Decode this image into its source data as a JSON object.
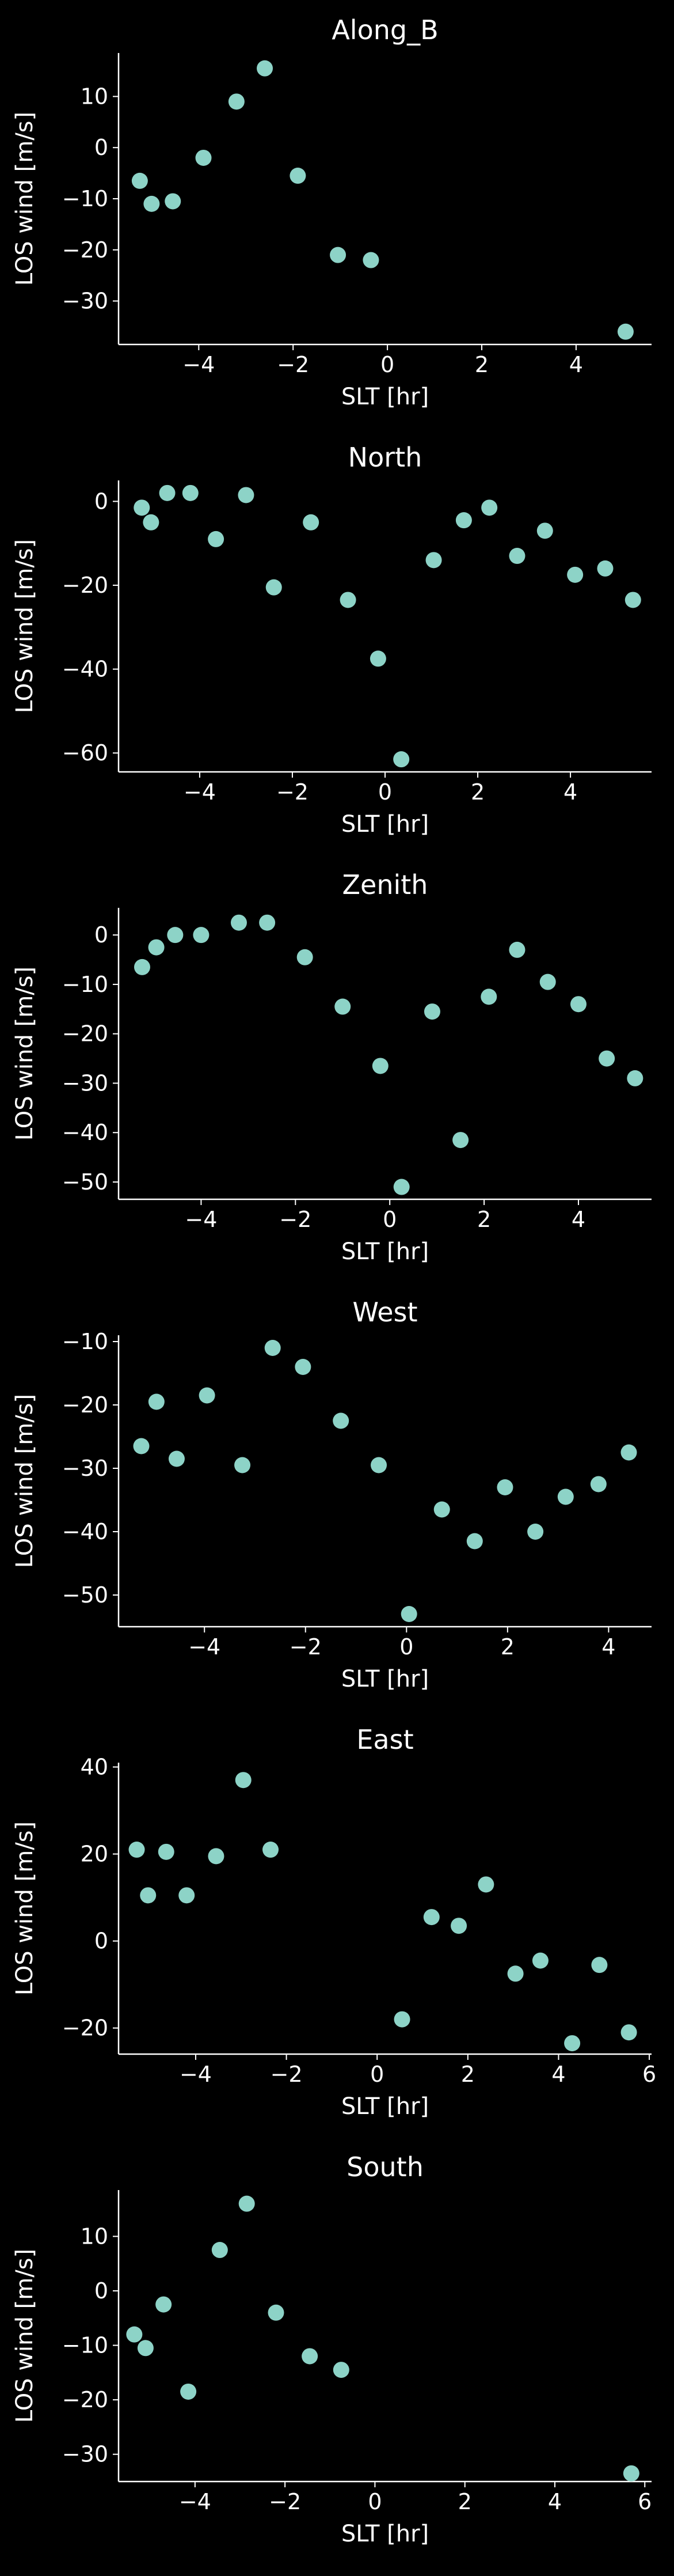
{
  "colors": {
    "background": "#000000",
    "axis": "#ffffff",
    "marker": "#8dd3c7"
  },
  "chart_data": [
    {
      "type": "scatter",
      "title": "Along_B",
      "xlabel": "SLT [hr]",
      "ylabel": "LOS wind [m/s]",
      "xlim": [
        -5.7,
        5.6
      ],
      "ylim": [
        -38.5,
        18.5
      ],
      "xticks": [
        -4,
        -2,
        0,
        2,
        4
      ],
      "yticks": [
        -30,
        -20,
        -10,
        0,
        10
      ],
      "x": [
        -5.25,
        -5.0,
        -4.55,
        -3.9,
        -3.2,
        -2.6,
        -1.9,
        -1.05,
        -0.35,
        5.05
      ],
      "y": [
        -6.5,
        -11,
        -10.5,
        -2,
        9,
        15.5,
        -5.5,
        -21,
        -22,
        -36
      ]
    },
    {
      "type": "scatter",
      "title": "North",
      "xlabel": "SLT [hr]",
      "ylabel": "LOS wind [m/s]",
      "xlim": [
        -5.75,
        5.75
      ],
      "ylim": [
        -64.5,
        5
      ],
      "xticks": [
        -4,
        -2,
        0,
        2,
        4
      ],
      "yticks": [
        -60,
        -40,
        -20,
        0
      ],
      "x": [
        -5.25,
        -5.05,
        -4.7,
        -4.2,
        -3.65,
        -3.0,
        -2.4,
        -1.6,
        -0.8,
        -0.15,
        0.35,
        1.05,
        1.7,
        2.25,
        2.85,
        3.45,
        4.1,
        4.75,
        5.35
      ],
      "y": [
        -1.5,
        -5,
        2,
        2,
        -9,
        1.5,
        -20.5,
        -5,
        -23.5,
        -37.5,
        -61.5,
        -14,
        -4.5,
        -1.5,
        -13,
        -7,
        -17.5,
        -16,
        -23.5
      ]
    },
    {
      "type": "scatter",
      "title": "Zenith",
      "xlabel": "SLT [hr]",
      "ylabel": "LOS wind [m/s]",
      "xlim": [
        -5.75,
        5.55
      ],
      "ylim": [
        -53.5,
        5.5
      ],
      "xticks": [
        -4,
        -2,
        0,
        2,
        4
      ],
      "yticks": [
        -50,
        -40,
        -30,
        -20,
        -10,
        0
      ],
      "x": [
        -5.25,
        -4.95,
        -4.55,
        -4.0,
        -3.2,
        -2.6,
        -1.8,
        -1.0,
        -0.2,
        0.25,
        0.9,
        1.5,
        2.1,
        2.7,
        3.35,
        4.0,
        4.6,
        5.2
      ],
      "y": [
        -6.5,
        -2.5,
        0,
        0,
        2.5,
        2.5,
        -4.5,
        -14.5,
        -26.5,
        -51,
        -15.5,
        -41.5,
        -12.5,
        -3,
        -9.5,
        -14,
        -25,
        -29
      ]
    },
    {
      "type": "scatter",
      "title": "West",
      "xlabel": "SLT [hr]",
      "ylabel": "LOS wind [m/s]",
      "xlim": [
        -5.7,
        4.85
      ],
      "ylim": [
        -55,
        -9
      ],
      "xticks": [
        -4,
        -2,
        0,
        2,
        4
      ],
      "yticks": [
        -50,
        -40,
        -30,
        -20,
        -10
      ],
      "x": [
        -5.25,
        -4.95,
        -4.55,
        -3.95,
        -3.25,
        -2.65,
        -2.05,
        -1.3,
        -0.55,
        0.05,
        0.7,
        1.35,
        1.95,
        2.55,
        3.15,
        3.8,
        4.4
      ],
      "y": [
        -26.5,
        -19.5,
        -28.5,
        -18.5,
        -29.5,
        -11,
        -14,
        -22.5,
        -29.5,
        -53,
        -36.5,
        -41.5,
        -33,
        -40,
        -34.5,
        -32.5,
        -27.5
      ]
    },
    {
      "type": "scatter",
      "title": "East",
      "xlabel": "SLT [hr]",
      "ylabel": "LOS wind [m/s]",
      "xlim": [
        -5.7,
        6.05
      ],
      "ylim": [
        -26,
        41
      ],
      "xticks": [
        -4,
        -2,
        0,
        2,
        4,
        6
      ],
      "yticks": [
        -20,
        0,
        20,
        40
      ],
      "x": [
        -5.3,
        -5.05,
        -4.65,
        -4.2,
        -3.55,
        -2.95,
        -2.35,
        0.55,
        1.2,
        1.8,
        2.4,
        3.05,
        3.6,
        4.3,
        4.9,
        5.55
      ],
      "y": [
        21,
        10.5,
        20.5,
        10.5,
        19.5,
        37,
        21,
        -18,
        5.5,
        3.5,
        13,
        -7.5,
        -4.5,
        -23.5,
        -5.5,
        -21
      ]
    },
    {
      "type": "scatter",
      "title": "South",
      "xlabel": "SLT [hr]",
      "ylabel": "LOS wind [m/s]",
      "xlim": [
        -5.7,
        6.15
      ],
      "ylim": [
        -35,
        18.5
      ],
      "xticks": [
        -4,
        -2,
        0,
        2,
        4,
        6
      ],
      "yticks": [
        -30,
        -20,
        -10,
        0,
        10
      ],
      "x": [
        -5.35,
        -5.1,
        -4.7,
        -4.15,
        -3.45,
        -2.85,
        -2.2,
        -1.45,
        -0.75,
        5.7
      ],
      "y": [
        -8,
        -10.5,
        -2.5,
        -18.5,
        7.5,
        16,
        -4,
        -12,
        -14.5,
        -33.5
      ]
    }
  ]
}
